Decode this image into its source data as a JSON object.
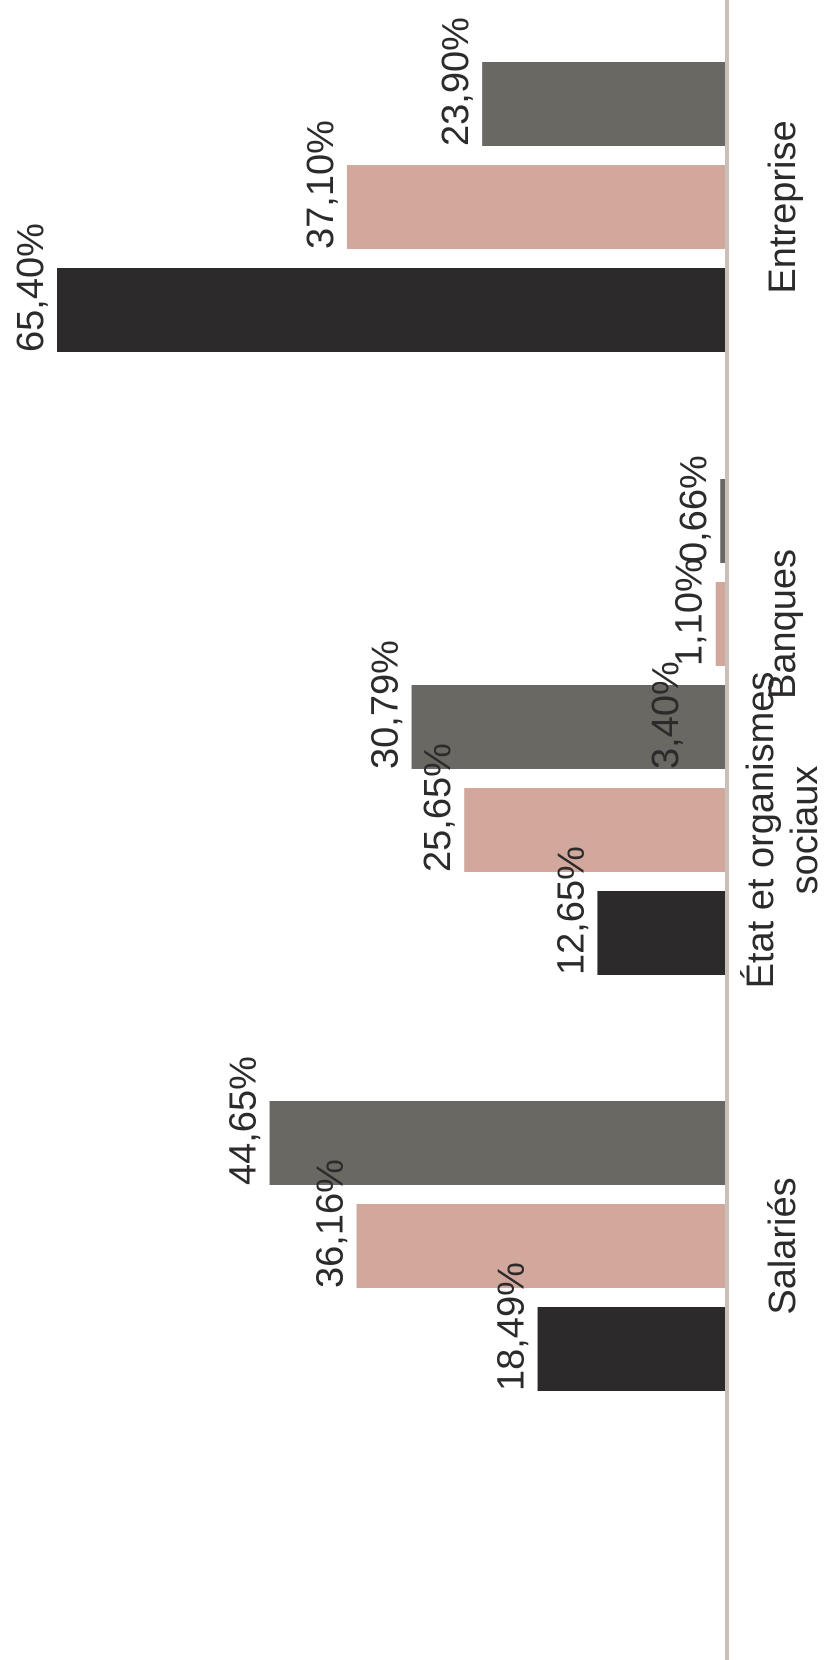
{
  "chart_data": {
    "type": "bar",
    "orientation": "rotated-horizontal",
    "categories": [
      "Entreprise",
      "Banques",
      "État et organismes sociaux",
      "Salariés"
    ],
    "category_lines": [
      [
        "Entreprise"
      ],
      [
        "Banques"
      ],
      [
        "État et organismes",
        "sociaux"
      ],
      [
        "Salariés"
      ]
    ],
    "series": [
      {
        "values": [
          65.4,
          3.4,
          12.65,
          18.49
        ],
        "labels": [
          "65,40%",
          "3,40%",
          "12,65%",
          "18,49%"
        ]
      },
      {
        "values": [
          37.1,
          1.1,
          25.65,
          36.16
        ],
        "labels": [
          "37,10%",
          "1,10%",
          "25,65%",
          "36,16%"
        ]
      },
      {
        "values": [
          23.9,
          0.66,
          30.79,
          44.65
        ],
        "labels": [
          "23,90%",
          "0,66%",
          "30,79%",
          "44,65%"
        ]
      }
    ],
    "colors": [
      "#2d2a2b",
      "#d2a79c",
      "#6a6863"
    ],
    "axis_color": "#c8bfb8",
    "xlim": [
      0,
      65.4
    ],
    "grid": false,
    "legend": "none"
  }
}
